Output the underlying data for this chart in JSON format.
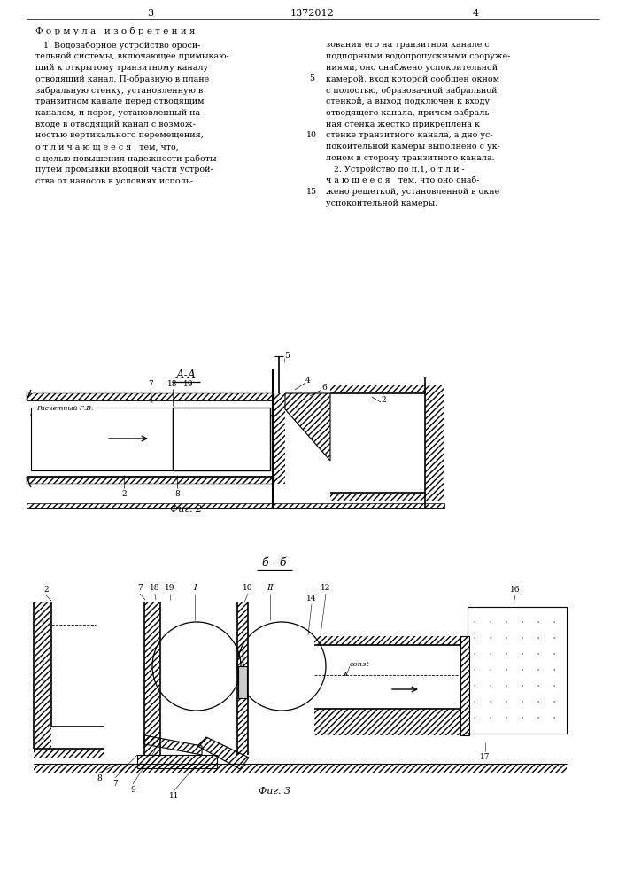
{
  "page_width": 7.07,
  "page_height": 10.0,
  "bg_color": "#ffffff",
  "text_color": "#000000",
  "header_3": "3",
  "header_patent": "1372012",
  "header_4": "4",
  "section_title": "Ф о р м у л а   и з о б р е т е н и я",
  "left_col_lines": [
    "   1. Водозаборное устройство ороси-",
    "тельной системы, включающее примыкаю-",
    "щий к открытому транзитному каналу",
    "отводящий канал, П-образную в плане",
    "забральную стенку, установленную в",
    "транзитном канале перед отводящим",
    "каналом, и порог, установленный на",
    "входе в отводящий канал с возмож-",
    "ностью вертикального перемещения,",
    "о т л и ч а ю щ е е с я   тем, что,",
    "с целью повышения надежности работы",
    "путем промывки входной части устрой-",
    "ства от наносов в условиях исполь-"
  ],
  "right_col_lines": [
    "зования его на транзитном канале с",
    "подпорными водопропускными сооруже-",
    "ниями, оно снабжено успокоительной",
    "камерой, вход которой сообщен окном",
    "с полостью, образовачной забральной",
    "стенкой, а выход подключен к входу",
    "отводящего канала, причем забраль-",
    "ная стенка жестко прикреплена к",
    "стенке транзитного канала, а дно ус-",
    "покоительной камеры выполнено с ук-",
    "лоном в сторону транзитного канала.",
    "   2. Устройство по п.1, о т л и -",
    "ч а ю щ е е с я   тем, что оно снаб-",
    "жено решеткой, установленной в окне",
    "успокоительной камеры."
  ],
  "fig2_title": "А-А",
  "fig2_caption": "Фиг. 2",
  "fig3_title": "б - б",
  "fig3_caption": "Фиг. 3"
}
